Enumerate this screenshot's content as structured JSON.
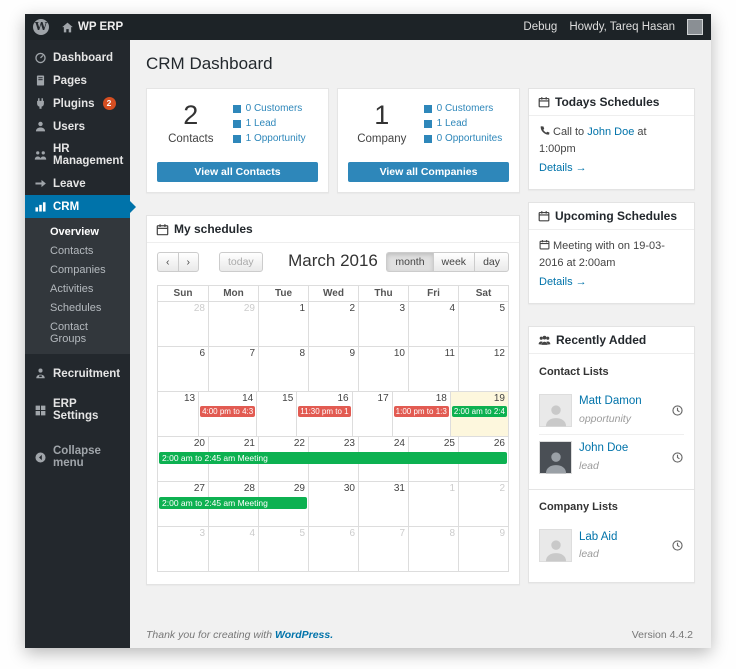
{
  "colors": {
    "adminbar_bg": "#1d2327",
    "sidebar_bg": "#23282d",
    "submenu_bg": "#32373c",
    "active_blue": "#0073aa",
    "button_blue": "#2e87ba",
    "link_blue": "#0073aa",
    "badge_orange": "#d54e21",
    "event_red": "#e25b52",
    "event_green": "#0db151",
    "today_bg": "#fdf7dd",
    "content_bg": "#f1f1f1"
  },
  "admin_bar": {
    "site_name": "WP ERP",
    "debug": "Debug",
    "howdy": "Howdy, Tareq Hasan"
  },
  "sidebar": {
    "items_top": [
      {
        "label": "Dashboard",
        "icon": "dashboard"
      },
      {
        "label": "Pages",
        "icon": "pages"
      },
      {
        "label": "Plugins",
        "icon": "plugins",
        "badge": "2"
      },
      {
        "label": "Users",
        "icon": "users"
      },
      {
        "label": "HR Management",
        "icon": "hr"
      },
      {
        "label": "Leave",
        "icon": "leave"
      },
      {
        "label": "CRM",
        "icon": "crm",
        "active": true
      }
    ],
    "crm_submenu": [
      {
        "label": "Overview",
        "current": true
      },
      {
        "label": "Contacts"
      },
      {
        "label": "Companies"
      },
      {
        "label": "Activities"
      },
      {
        "label": "Schedules"
      },
      {
        "label": "Contact Groups"
      }
    ],
    "items_bottom": [
      {
        "label": "Recruitment",
        "icon": "recruitment",
        "sep": "sep-md"
      },
      {
        "label": "ERP Settings",
        "icon": "settings",
        "sep": "sep-md"
      },
      {
        "label": "Collapse menu",
        "icon": "collapse",
        "sep": "sep-lg",
        "dim": true
      }
    ]
  },
  "page": {
    "title": "CRM Dashboard"
  },
  "cards": [
    {
      "count": "2",
      "label": "Contacts",
      "legend": [
        "0 Customers",
        "1 Lead",
        "1 Opportunity"
      ],
      "button": "View all Contacts"
    },
    {
      "count": "1",
      "label": "Company",
      "legend": [
        "0 Customers",
        "1 Lead",
        "0 Opportunites"
      ],
      "button": "View all Companies"
    }
  ],
  "calendar": {
    "panel_title": "My schedules",
    "toolbar": {
      "prev": "‹",
      "next": "›",
      "today": "today",
      "title": "March 2016",
      "views": [
        "month",
        "week",
        "day"
      ],
      "active_view": "month"
    },
    "day_headers": [
      "Sun",
      "Mon",
      "Tue",
      "Wed",
      "Thu",
      "Fri",
      "Sat"
    ],
    "weeks": [
      {
        "days": [
          {
            "n": 28,
            "muted": true
          },
          {
            "n": 29,
            "muted": true
          },
          {
            "n": 1
          },
          {
            "n": 2
          },
          {
            "n": 3
          },
          {
            "n": 4
          },
          {
            "n": 5
          }
        ]
      },
      {
        "days": [
          {
            "n": 6
          },
          {
            "n": 7
          },
          {
            "n": 8
          },
          {
            "n": 9
          },
          {
            "n": 10
          },
          {
            "n": 11
          },
          {
            "n": 12
          }
        ]
      },
      {
        "days": [
          {
            "n": 13
          },
          {
            "n": 14,
            "events": [
              {
                "text": "4:00 pm to 4:3",
                "color": "red"
              }
            ]
          },
          {
            "n": 15
          },
          {
            "n": 16,
            "events": [
              {
                "text": "11:30 pm to 1",
                "color": "red"
              }
            ]
          },
          {
            "n": 17
          },
          {
            "n": 18,
            "events": [
              {
                "text": "1:00 pm to 1:3",
                "color": "red"
              }
            ]
          },
          {
            "n": 19,
            "today": true,
            "events": [
              {
                "text": "2:00 am to 2:4",
                "color": "green"
              }
            ]
          }
        ]
      },
      {
        "days": [
          {
            "n": 20
          },
          {
            "n": 21
          },
          {
            "n": 22
          },
          {
            "n": 23
          },
          {
            "n": 24
          },
          {
            "n": 25
          },
          {
            "n": 26
          }
        ],
        "bar": {
          "text": "2:00 am to 2:45 am Meeting",
          "color": "green",
          "span": 7
        }
      },
      {
        "days": [
          {
            "n": 27
          },
          {
            "n": 28
          },
          {
            "n": 29
          },
          {
            "n": 30
          },
          {
            "n": 31
          },
          {
            "n": 1,
            "muted": true
          },
          {
            "n": 2,
            "muted": true
          }
        ],
        "bar": {
          "text": "2:00 am to 2:45 am Meeting",
          "color": "green",
          "span": 3
        }
      },
      {
        "days": [
          {
            "n": 3,
            "muted": true
          },
          {
            "n": 4,
            "muted": true
          },
          {
            "n": 5,
            "muted": true
          },
          {
            "n": 6,
            "muted": true
          },
          {
            "n": 7,
            "muted": true
          },
          {
            "n": 8,
            "muted": true
          },
          {
            "n": 9,
            "muted": true
          }
        ]
      }
    ]
  },
  "right_panels": {
    "todays": {
      "title": "Todays Schedules",
      "text_prefix": "Call to ",
      "link_text": "John Doe",
      "text_suffix": " at 1:00pm",
      "details": "Details →"
    },
    "upcoming": {
      "title": "Upcoming Schedules",
      "text": "Meeting with on 19-03-2016 at 2:00am",
      "details": "Details →"
    },
    "recent": {
      "title": "Recently Added",
      "contact_lists_label": "Contact Lists",
      "contacts": [
        {
          "name": "Matt Damon",
          "type": "opportunity",
          "photo": false
        },
        {
          "name": "John Doe",
          "type": "lead",
          "photo": true
        }
      ],
      "company_lists_label": "Company Lists",
      "companies": [
        {
          "name": "Lab Aid",
          "type": "lead",
          "photo": false
        }
      ]
    }
  },
  "footer": {
    "thanks_prefix": "Thank you for creating with ",
    "wordpress_link": "WordPress.",
    "version": "Version 4.4.2"
  }
}
